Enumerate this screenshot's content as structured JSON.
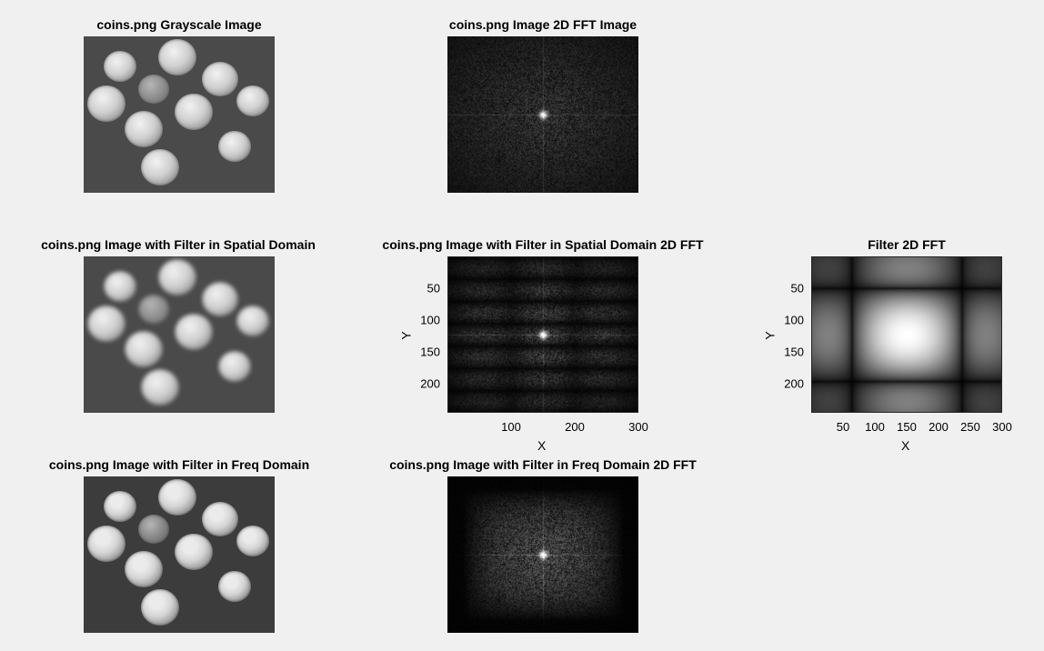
{
  "panels": {
    "p1": {
      "title": "coins.png Grayscale Image"
    },
    "p2": {
      "title": "coins.png Image 2D FFT Image"
    },
    "p3": {
      "title": "coins.png Image with Filter in Spatial Domain"
    },
    "p4": {
      "title": "coins.png Image with Filter in Spatial Domain 2D FFT",
      "xlabel": "X",
      "ylabel": "Y",
      "xticks": [
        "100",
        "200",
        "300"
      ],
      "yticks": [
        "50",
        "100",
        "150",
        "200"
      ]
    },
    "p5": {
      "title": "Filter 2D FFT",
      "xlabel": "X",
      "ylabel": "Y",
      "xticks": [
        "50",
        "100",
        "150",
        "200",
        "250",
        "300"
      ],
      "yticks": [
        "50",
        "100",
        "150",
        "200"
      ]
    },
    "p6": {
      "title": "coins.png Image with Filter in Freq Domain"
    },
    "p7": {
      "title": "coins.png Image with Filter in Freq Domain 2D FFT"
    }
  },
  "colors": {
    "figure_bg": "#f0f0f0",
    "coin_bg": "#4a4a4a",
    "axes_edge": "#262626"
  }
}
